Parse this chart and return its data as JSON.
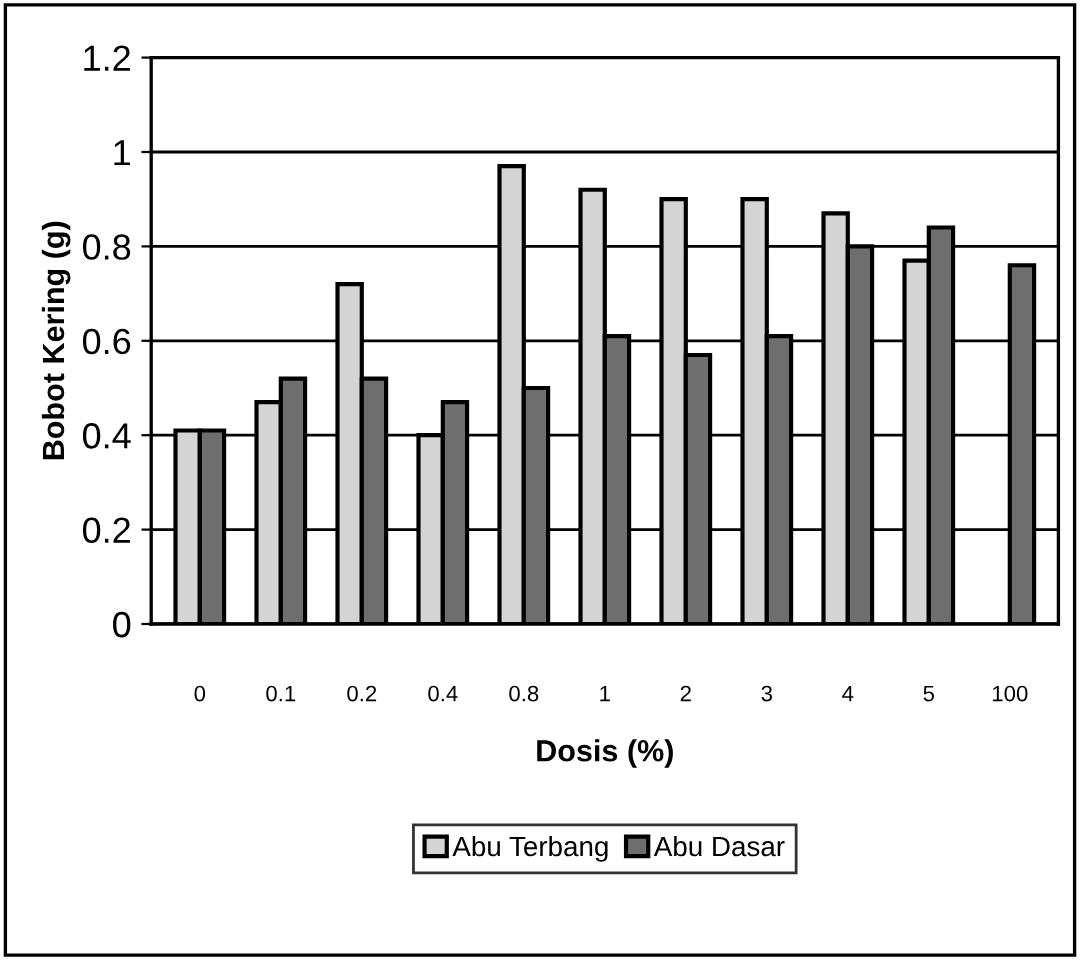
{
  "chart_data": {
    "type": "bar",
    "xlabel": "Dosis (%)",
    "ylabel": "Bobot Kering (g)",
    "categories": [
      "0",
      "0.1",
      "0.2",
      "0.4",
      "0.8",
      "1",
      "2",
      "3",
      "4",
      "5",
      "100"
    ],
    "series": [
      {
        "name": "Abu Terbang",
        "color": "#d4d4d4",
        "values": [
          0.41,
          0.47,
          0.72,
          0.4,
          0.97,
          0.92,
          0.9,
          0.9,
          0.87,
          0.77,
          null
        ]
      },
      {
        "name": "Abu Dasar",
        "color": "#6e6e6e",
        "values": [
          0.41,
          0.52,
          0.52,
          0.47,
          0.5,
          0.61,
          0.57,
          0.61,
          0.8,
          0.84,
          0.76
        ]
      }
    ],
    "ylim": [
      0,
      1.2
    ],
    "yticks": [
      0,
      0.2,
      0.4,
      0.6,
      0.8,
      1,
      1.2
    ],
    "grid": "y",
    "legend": "bottom"
  }
}
